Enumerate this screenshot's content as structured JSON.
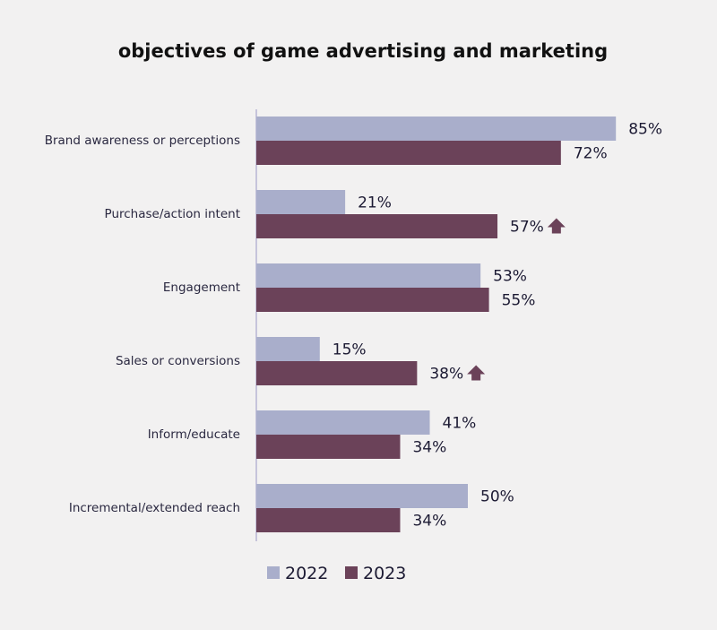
{
  "chart_data": {
    "type": "bar",
    "orientation": "horizontal",
    "title": "objectives of game advertising and marketing",
    "categories": [
      "Brand awareness or perceptions",
      "Purchase/action intent",
      "Engagement",
      "Sales or conversions",
      "Inform/educate",
      "Incremental/extended reach"
    ],
    "series": [
      {
        "name": "2022",
        "color": "#a9aecb",
        "values": [
          85,
          21,
          53,
          15,
          41,
          50
        ],
        "labels": [
          "85%",
          "21%",
          "53%",
          "15%",
          "41%",
          "50%"
        ]
      },
      {
        "name": "2023",
        "color": "#6b4259",
        "values": [
          72,
          57,
          55,
          38,
          34,
          34
        ],
        "labels": [
          "72%",
          "57%",
          "55%",
          "38%",
          "34%",
          "34%"
        ]
      }
    ],
    "increase_markers": [
      {
        "series": "2023",
        "category_index": 1,
        "icon": "up-arrow-icon"
      },
      {
        "series": "2023",
        "category_index": 3,
        "icon": "up-arrow-icon"
      }
    ],
    "xlim": [
      0,
      100
    ],
    "grid": false,
    "legend_position": "bottom",
    "axis_color": "#b8b6d4",
    "marker_color": "#6b4259"
  }
}
